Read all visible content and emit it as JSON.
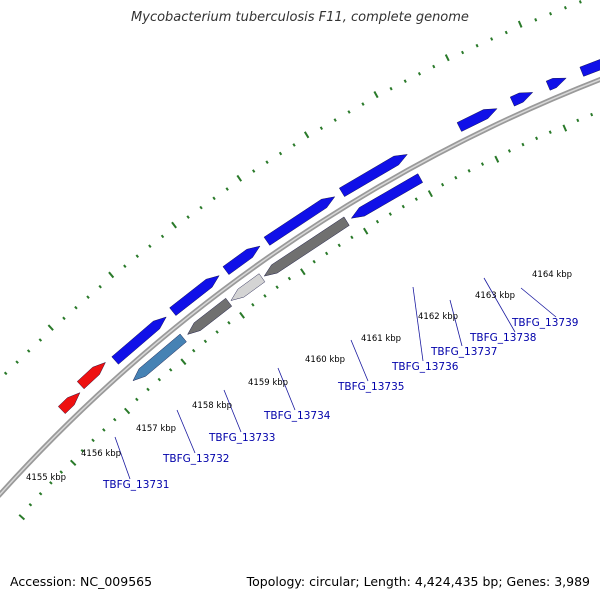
{
  "title": "Mycobacterium tuberculosis F11, complete genome",
  "footer": {
    "accession": "Accession: NC_009565",
    "summary": "Topology: circular; Length: 4,424,435 bp; Genes: 3,989"
  },
  "colors": {
    "forward_gene": "#1010e8",
    "reverse_gene": "#4682b4",
    "selected_gene": "#707070",
    "light_gene": "#d4d4d4",
    "other_feature": "#ee1111",
    "tick": "#2a7a2a",
    "backbone": "#9a9a9a",
    "gene_label": "#0000aa"
  },
  "kbp_labels": [
    "4155 kbp",
    "4156 kbp",
    "4157 kbp",
    "4158 kbp",
    "4159 kbp",
    "4160 kbp",
    "4161 kbp",
    "4162 kbp",
    "4163 kbp",
    "4164 kbp"
  ],
  "gene_labels": [
    "TBFG_13731",
    "TBFG_13732",
    "TBFG_13733",
    "TBFG_13734",
    "TBFG_13735",
    "TBFG_13736",
    "TBFG_13737",
    "TBFG_13738",
    "TBFG_13739"
  ]
}
